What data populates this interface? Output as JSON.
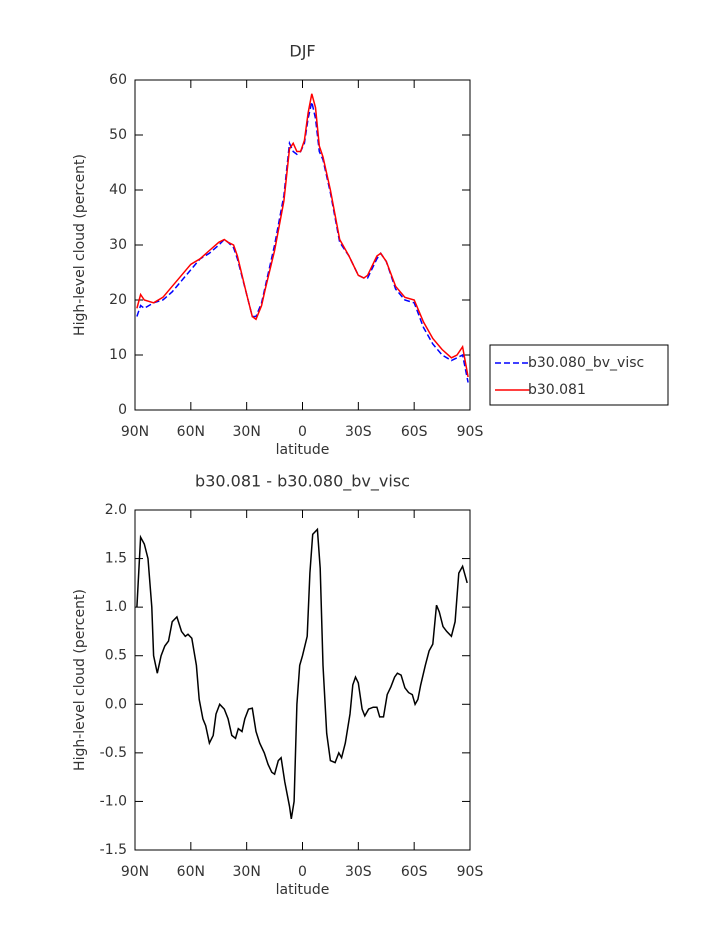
{
  "chart_data": [
    {
      "type": "line",
      "title": "DJF",
      "x_label": "latitude",
      "y_label": "High-level cloud (percent)",
      "xlim": [
        90,
        -90
      ],
      "xticks": [
        {
          "value": 90,
          "label": "90N"
        },
        {
          "value": 60,
          "label": "60N"
        },
        {
          "value": 30,
          "label": "30N"
        },
        0,
        {
          "value": -30,
          "label": "30S"
        },
        {
          "value": -60,
          "label": "60S"
        },
        {
          "value": -90,
          "label": "90S"
        }
      ],
      "ylim": [
        0,
        60
      ],
      "yticks": [
        0,
        10,
        20,
        30,
        40,
        50,
        60
      ],
      "legend": "right",
      "x": [
        89,
        87,
        85,
        80,
        75,
        70,
        65,
        60,
        55,
        50,
        45,
        42,
        40,
        37,
        35,
        30,
        27,
        25,
        22,
        20,
        15,
        10,
        7,
        5,
        3,
        1,
        -1,
        -3,
        -5,
        -7,
        -9,
        -11,
        -13,
        -15,
        -20,
        -25,
        -30,
        -33,
        -35,
        -40,
        -42,
        -45,
        -50,
        -55,
        -60,
        -65,
        -70,
        -75,
        -80,
        -83,
        -86,
        -89
      ],
      "series": [
        {
          "name": "b30.080_bv_visc",
          "color": "#0000ff",
          "line_style": "dashed",
          "values": [
            17,
            19,
            18.5,
            19.5,
            20,
            21.5,
            23.5,
            25.5,
            27.5,
            28.5,
            30,
            31,
            30.5,
            29.5,
            27.5,
            21,
            17,
            17,
            19.5,
            22.5,
            30,
            39,
            48.5,
            47,
            46.5,
            47,
            48.5,
            53,
            56,
            53,
            47,
            45.5,
            42.5,
            39.5,
            30.5,
            28,
            24.5,
            24,
            24,
            27.5,
            28.5,
            27,
            22,
            20,
            19.5,
            15,
            12,
            10,
            9,
            9.5,
            10,
            5
          ]
        },
        {
          "name": "b30.081",
          "color": "#ff0000",
          "line_style": "solid",
          "values": [
            18.5,
            21,
            20,
            19.5,
            20.5,
            22.5,
            24.5,
            26.5,
            27.5,
            29,
            30.5,
            31,
            30.5,
            30,
            28,
            21,
            17,
            16.5,
            19,
            22,
            29,
            38,
            47.5,
            48.5,
            47,
            47,
            49,
            54,
            57.5,
            55,
            48,
            46,
            43,
            40,
            31,
            28,
            24.5,
            24,
            24.5,
            28,
            28.5,
            27,
            22.5,
            20.5,
            20,
            16,
            13,
            11,
            9.5,
            10,
            11.5,
            6
          ]
        }
      ]
    },
    {
      "type": "line",
      "title": "b30.081 - b30.080_bv_visc",
      "x_label": "latitude",
      "y_label": "High-level cloud (percent)",
      "xlim": [
        90,
        -90
      ],
      "xticks": [
        {
          "value": 90,
          "label": "90N"
        },
        {
          "value": 60,
          "label": "60N"
        },
        {
          "value": 30,
          "label": "30N"
        },
        0,
        {
          "value": -30,
          "label": "30S"
        },
        {
          "value": -60,
          "label": "60S"
        },
        {
          "value": -90,
          "label": "90S"
        }
      ],
      "ylim": [
        -1.5,
        2
      ],
      "yticks": [
        -1.5,
        {
          "value": -1,
          "label": "-1.0"
        },
        -0.5,
        {
          "value": 0,
          "label": "0.0"
        },
        0.5,
        {
          "value": 1,
          "label": "1.0"
        },
        1.5,
        {
          "value": 2,
          "label": "2.0"
        }
      ],
      "color": "#000000",
      "x": [
        89,
        87,
        85,
        83,
        81,
        80,
        78,
        76,
        74,
        72,
        70,
        67.5,
        65,
        63,
        61.5,
        59.5,
        57,
        55.5,
        53.5,
        52,
        50,
        48,
        46.5,
        44.5,
        42,
        40,
        38,
        36,
        34.5,
        32.5,
        31,
        29,
        27,
        25,
        23,
        20.5,
        18.5,
        16.5,
        15,
        13,
        11.5,
        9.5,
        7,
        6,
        4.5,
        3,
        1.5,
        0,
        -2.5,
        -4,
        -5.5,
        -8,
        -9.5,
        -11,
        -13,
        -15,
        -17.5,
        -19.5,
        -21,
        -23,
        -25.5,
        -27,
        -28.5,
        -30,
        -32,
        -33.5,
        -35.5,
        -38,
        -40,
        -41.5,
        -43.5,
        -45.5,
        -47.5,
        -49.5,
        -51,
        -53,
        -55,
        -57,
        -59,
        -60.5,
        -62,
        -63.5,
        -66,
        -68,
        -70,
        -72,
        -73.5,
        -75.5,
        -77.5,
        -80,
        -82,
        -84,
        -86,
        -88.5
      ],
      "values": [
        1.0,
        1.72,
        1.65,
        1.5,
        1.0,
        0.5,
        0.32,
        0.5,
        0.6,
        0.65,
        0.85,
        0.9,
        0.75,
        0.7,
        0.72,
        0.68,
        0.4,
        0.05,
        -0.15,
        -0.22,
        -0.4,
        -0.32,
        -0.1,
        0,
        -0.05,
        -0.15,
        -0.32,
        -0.35,
        -0.25,
        -0.28,
        -0.15,
        -0.05,
        -0.04,
        -0.28,
        -0.4,
        -0.5,
        -0.62,
        -0.7,
        -0.72,
        -0.58,
        -0.55,
        -0.8,
        -1.05,
        -1.18,
        -1.0,
        0,
        0.4,
        0.5,
        0.7,
        1.35,
        1.75,
        1.8,
        1.4,
        0.4,
        -0.3,
        -0.58,
        -0.6,
        -0.5,
        -0.55,
        -0.4,
        -0.1,
        0.2,
        0.28,
        0.22,
        -0.05,
        -0.12,
        -0.05,
        -0.03,
        -0.03,
        -0.13,
        -0.13,
        0.1,
        0.18,
        0.28,
        0.32,
        0.3,
        0.17,
        0.12,
        0.1,
        0,
        0.05,
        0.2,
        0.4,
        0.55,
        0.62,
        1.02,
        0.95,
        0.8,
        0.75,
        0.7,
        0.85,
        1.35,
        1.42,
        1.25
      ]
    }
  ]
}
